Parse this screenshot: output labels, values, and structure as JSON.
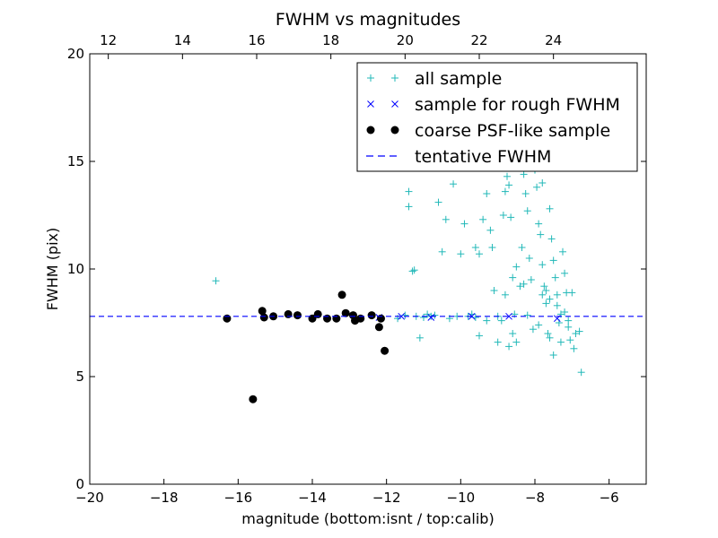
{
  "chart_data": {
    "type": "scatter",
    "title": "FWHM vs magnitudes",
    "xlabel": "magnitude (bottom:isnt / top:calib)",
    "ylabel": "FWHM (pix)",
    "xlim": [
      -20,
      -5
    ],
    "ylim": [
      0,
      20
    ],
    "x_ticks": [
      -20,
      -18,
      -16,
      -14,
      -12,
      -10,
      -8,
      -6
    ],
    "x_tick_labels": [
      "−20",
      "−18",
      "−16",
      "−14",
      "−12",
      "−10",
      "−8",
      "−6"
    ],
    "y_ticks": [
      0,
      5,
      10,
      15,
      20
    ],
    "y_tick_labels": [
      "0",
      "5",
      "10",
      "15",
      "20"
    ],
    "top_axis": {
      "ticks": [
        12,
        14,
        16,
        18,
        20,
        22,
        24
      ],
      "tick_labels": [
        "12",
        "14",
        "16",
        "18",
        "20",
        "22",
        "24"
      ],
      "offset": 31.5
    },
    "grid": false,
    "legend_position": "top-right",
    "colors": {
      "all": "#22b8b8",
      "rough": "#0000ff",
      "coarse": "#000000",
      "tentative": "#0000ff"
    },
    "series": [
      {
        "name": "all sample",
        "marker": "plus",
        "color": "#22b8b8",
        "points": [
          [
            -16.6,
            9.45
          ],
          [
            -11.4,
            12.9
          ],
          [
            -11.4,
            13.6
          ],
          [
            -11.3,
            9.9
          ],
          [
            -11.25,
            9.95
          ],
          [
            -11.1,
            6.8
          ],
          [
            -10.9,
            7.9
          ],
          [
            -10.8,
            7.8
          ],
          [
            -11.7,
            7.7
          ],
          [
            -11.5,
            7.85
          ],
          [
            -11.2,
            7.8
          ],
          [
            -10.6,
            13.1
          ],
          [
            -10.4,
            12.3
          ],
          [
            -10.2,
            13.95
          ],
          [
            -10.1,
            7.8
          ],
          [
            -10.0,
            10.7
          ],
          [
            -10.5,
            10.8
          ],
          [
            -9.9,
            12.1
          ],
          [
            -9.8,
            7.8
          ],
          [
            -9.7,
            7.9
          ],
          [
            -9.6,
            11.0
          ],
          [
            -9.5,
            10.7
          ],
          [
            -9.4,
            12.3
          ],
          [
            -9.3,
            13.5
          ],
          [
            -9.2,
            11.8
          ],
          [
            -9.15,
            11.0
          ],
          [
            -9.1,
            9.0
          ],
          [
            -9.0,
            7.8
          ],
          [
            -8.9,
            7.6
          ],
          [
            -8.85,
            12.5
          ],
          [
            -8.8,
            13.6
          ],
          [
            -8.75,
            14.3
          ],
          [
            -8.7,
            13.9
          ],
          [
            -8.65,
            12.4
          ],
          [
            -8.6,
            7.0
          ],
          [
            -8.55,
            7.9
          ],
          [
            -8.5,
            10.1
          ],
          [
            -8.4,
            9.2
          ],
          [
            -8.35,
            11.0
          ],
          [
            -8.3,
            14.4
          ],
          [
            -8.25,
            13.5
          ],
          [
            -8.2,
            12.7
          ],
          [
            -8.15,
            10.5
          ],
          [
            -8.1,
            9.5
          ],
          [
            -8.05,
            7.2
          ],
          [
            -8.0,
            14.6
          ],
          [
            -7.95,
            13.8
          ],
          [
            -7.9,
            12.1
          ],
          [
            -7.85,
            11.6
          ],
          [
            -7.8,
            10.2
          ],
          [
            -7.75,
            9.2
          ],
          [
            -7.7,
            8.4
          ],
          [
            -7.65,
            7.0
          ],
          [
            -7.6,
            6.8
          ],
          [
            -7.55,
            11.4
          ],
          [
            -7.5,
            10.4
          ],
          [
            -7.45,
            9.6
          ],
          [
            -7.4,
            8.8
          ],
          [
            -7.35,
            7.5
          ],
          [
            -7.3,
            6.6
          ],
          [
            -7.25,
            10.8
          ],
          [
            -7.2,
            9.8
          ],
          [
            -7.15,
            8.9
          ],
          [
            -7.1,
            7.6
          ],
          [
            -7.05,
            6.7
          ],
          [
            -7.0,
            8.9
          ],
          [
            -6.95,
            6.3
          ],
          [
            -6.9,
            7.0
          ],
          [
            -6.8,
            7.1
          ],
          [
            -6.75,
            5.2
          ],
          [
            -7.5,
            6.0
          ],
          [
            -7.6,
            12.8
          ],
          [
            -7.8,
            14.0
          ],
          [
            -8.0,
            15.3
          ],
          [
            -7.9,
            15.5
          ],
          [
            -9.5,
            6.9
          ],
          [
            -9.0,
            6.6
          ],
          [
            -8.7,
            6.4
          ],
          [
            -8.5,
            6.6
          ],
          [
            -9.3,
            7.6
          ],
          [
            -8.8,
            8.8
          ],
          [
            -8.3,
            9.3
          ],
          [
            -7.7,
            9.0
          ],
          [
            -7.4,
            8.3
          ],
          [
            -7.2,
            8.0
          ],
          [
            -7.6,
            8.6
          ],
          [
            -7.8,
            8.8
          ],
          [
            -8.6,
            9.6
          ],
          [
            -10.3,
            7.7
          ],
          [
            -10.7,
            7.85
          ],
          [
            -11.0,
            7.75
          ],
          [
            -9.6,
            7.75
          ],
          [
            -8.2,
            7.85
          ],
          [
            -7.9,
            7.4
          ],
          [
            -7.3,
            7.9
          ],
          [
            -7.1,
            7.3
          ]
        ]
      },
      {
        "name": "sample for rough FWHM",
        "marker": "x",
        "color": "#0000ff",
        "points": [
          [
            -12.2,
            7.75
          ],
          [
            -11.6,
            7.8
          ],
          [
            -10.8,
            7.75
          ],
          [
            -9.7,
            7.8
          ],
          [
            -8.7,
            7.8
          ],
          [
            -7.4,
            7.7
          ]
        ]
      },
      {
        "name": "coarse PSF-like sample",
        "marker": "circle",
        "color": "#000000",
        "points": [
          [
            -16.3,
            7.7
          ],
          [
            -15.6,
            3.95
          ],
          [
            -15.35,
            8.05
          ],
          [
            -15.3,
            7.75
          ],
          [
            -15.05,
            7.8
          ],
          [
            -14.65,
            7.9
          ],
          [
            -14.4,
            7.85
          ],
          [
            -14.0,
            7.7
          ],
          [
            -13.85,
            7.9
          ],
          [
            -13.6,
            7.7
          ],
          [
            -13.35,
            7.7
          ],
          [
            -13.2,
            8.8
          ],
          [
            -13.1,
            7.95
          ],
          [
            -12.9,
            7.85
          ],
          [
            -12.85,
            7.6
          ],
          [
            -12.7,
            7.7
          ],
          [
            -12.4,
            7.85
          ],
          [
            -12.2,
            7.3
          ],
          [
            -12.15,
            7.7
          ],
          [
            -12.05,
            6.2
          ]
        ]
      },
      {
        "name": "tentative FWHM",
        "marker": "dashed-line",
        "color": "#0000ff",
        "y": 7.8
      }
    ]
  }
}
